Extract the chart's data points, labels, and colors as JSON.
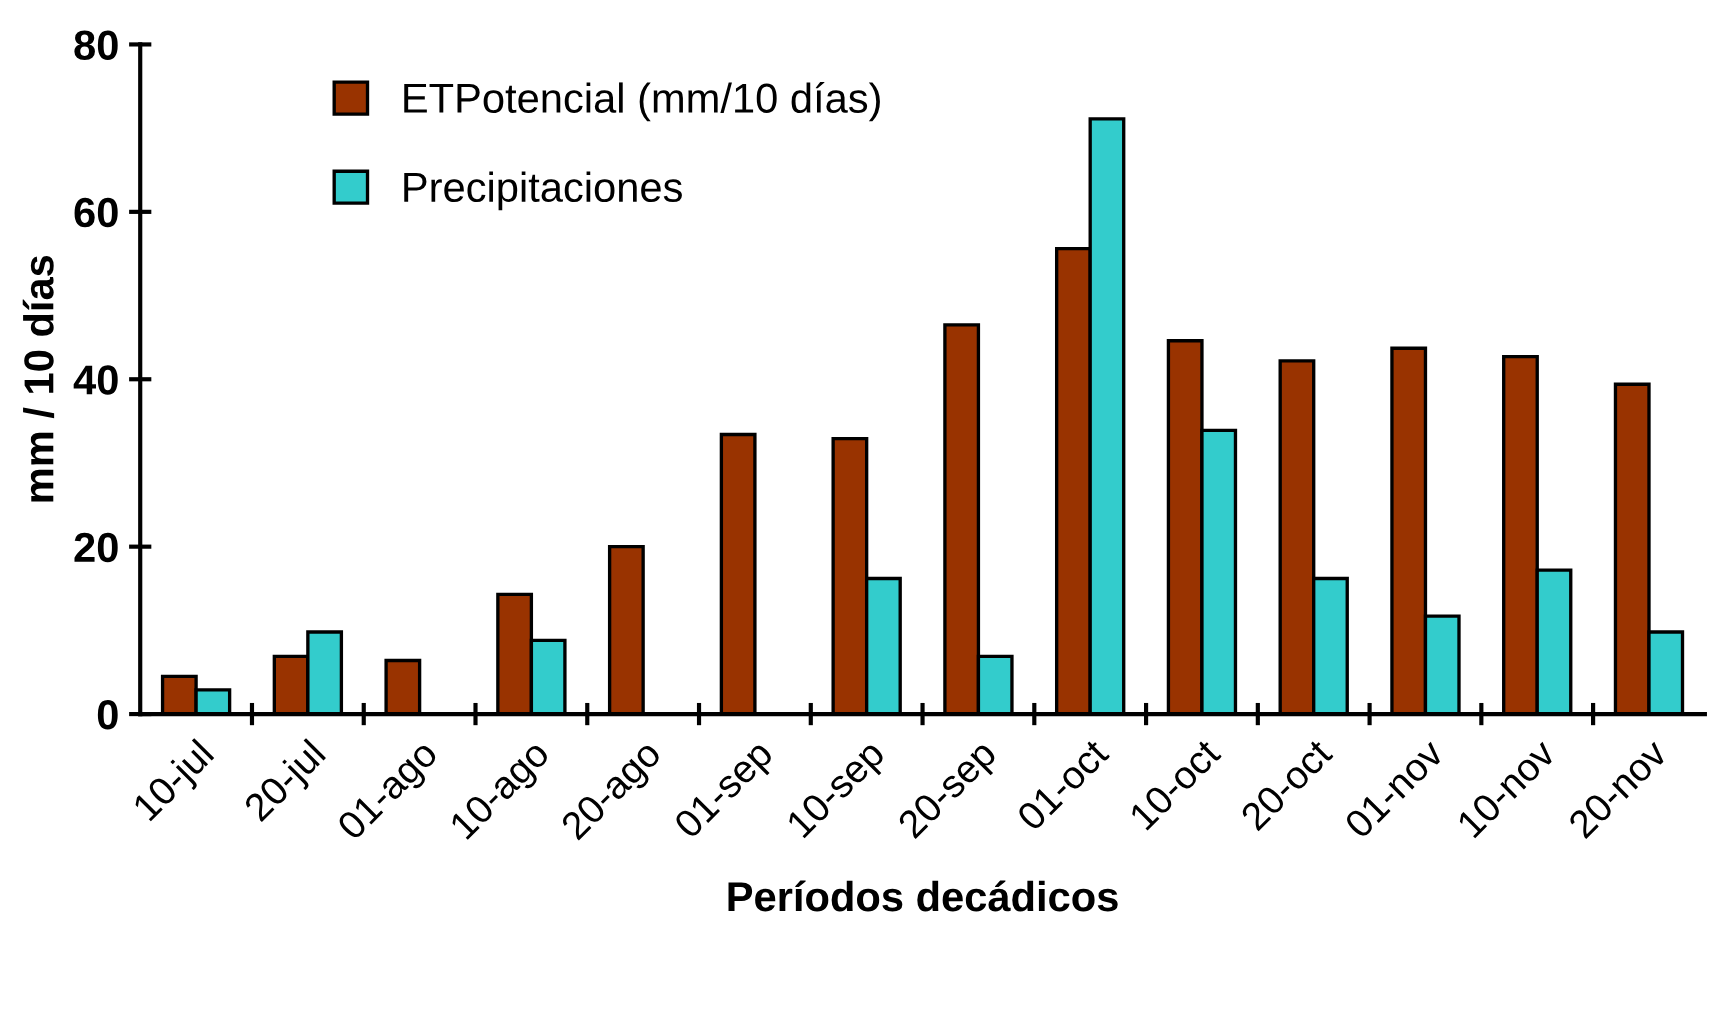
{
  "chart_data": {
    "type": "bar",
    "xlabel": "Períodos decádicos",
    "ylabel": "mm / 10 días",
    "categories": [
      "10-jul",
      "20-jul",
      "01-ago",
      "10-ago",
      "20-ago",
      "01-sep",
      "10-sep",
      "20-sep",
      "01-oct",
      "10-oct",
      "20-oct",
      "01-nov",
      "10-nov",
      "20-nov"
    ],
    "series": [
      {
        "name": "ETPotencial (mm/10 días)",
        "color": "#993300",
        "values": [
          4.5,
          6.9,
          6.4,
          14.3,
          20.0,
          33.4,
          32.9,
          46.5,
          55.6,
          44.6,
          42.2,
          43.7,
          42.7,
          39.4
        ]
      },
      {
        "name": "Precipitaciones",
        "color": "#33cccc",
        "values": [
          2.9,
          9.8,
          null,
          8.8,
          null,
          null,
          16.2,
          6.9,
          71.1,
          33.9,
          16.2,
          11.7,
          17.2,
          9.8
        ]
      }
    ],
    "ylim": [
      0,
      80
    ],
    "yticks": [
      0,
      20,
      40,
      60,
      80
    ],
    "grid": false,
    "legend": "top left"
  }
}
